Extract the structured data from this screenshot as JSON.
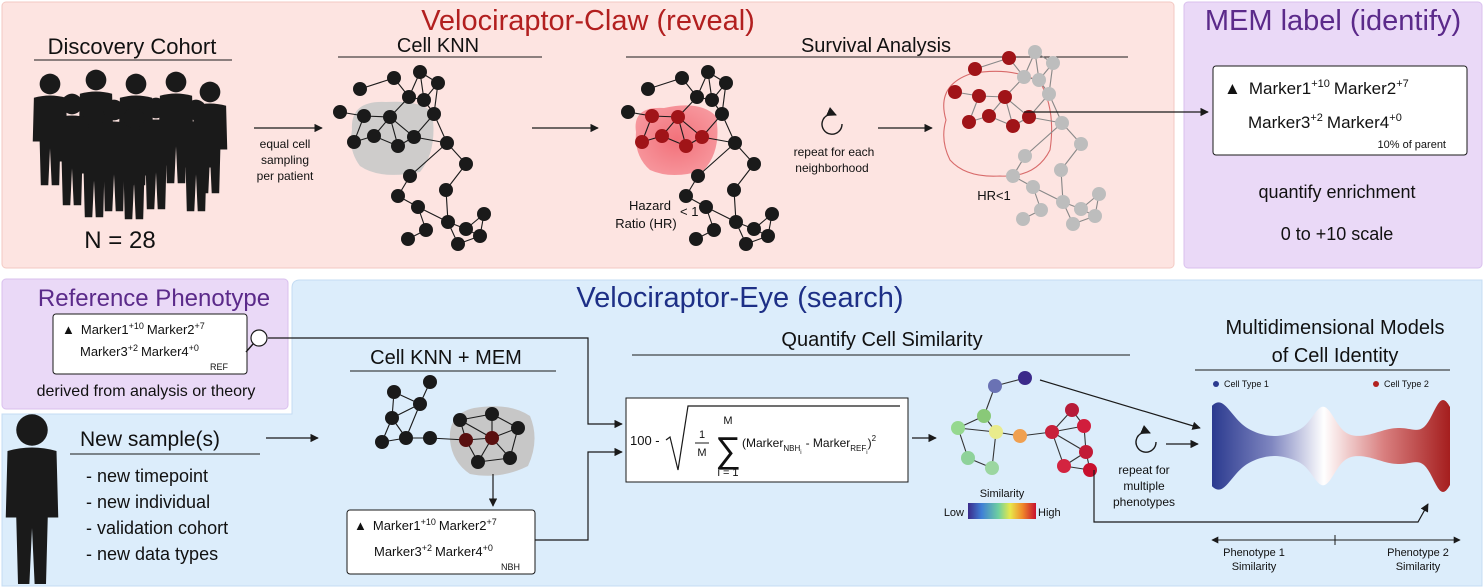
{
  "claw": {
    "title": "Velociraptor-Claw (reveal)",
    "discovery_label": "Discovery Cohort",
    "n_label": "N = 28",
    "sampling_lines": [
      "equal cell",
      "sampling",
      "per patient"
    ],
    "knn_label": "Cell KNN",
    "survival_label": "Survival Analysis",
    "hazard_lines": [
      "Hazard",
      "Ratio (HR)"
    ],
    "hazard_value": "< 1",
    "repeat_lines": [
      "repeat for each",
      "neighborhood"
    ],
    "hr_label": "HR<1"
  },
  "mem": {
    "title": "MEM label (identify)",
    "line1": {
      "glyph": "▲",
      "m1": "Marker1",
      "s1": "+10",
      "m2": "Marker2",
      "s2": "+7"
    },
    "line2": {
      "m3": "Marker3",
      "s3": "+2",
      "m4": "Marker4",
      "s4": "+0"
    },
    "parent": "10% of parent",
    "quantify": "quantify enrichment",
    "scale": "0 to +10 scale"
  },
  "reference": {
    "title": "Reference Phenotype",
    "line1": {
      "glyph": "▲",
      "m1": "Marker1",
      "s1": "+10",
      "m2": "Marker2",
      "s2": "+7"
    },
    "line2": {
      "m3": "Marker3",
      "s3": "+2",
      "m4": "Marker4",
      "s4": "+0"
    },
    "sub": "REF",
    "derived": "derived from analysis or theory"
  },
  "eye": {
    "title": "Velociraptor-Eye (search)",
    "new_samples": "New sample(s)",
    "bullets": [
      "-  new timepoint",
      "-  new individual",
      "-  validation cohort",
      "-  new data types"
    ],
    "knn_mem_label": "Cell KNN + MEM",
    "nbh": {
      "glyph": "▲",
      "m1": "Marker1",
      "s1": "+10",
      "m2": "Marker2",
      "s2": "+7",
      "m3": "Marker3",
      "s3": "+2",
      "m4": "Marker4",
      "s4": "+0",
      "sub": "NBH"
    },
    "quantify_label": "Quantify Cell Similarity",
    "formula": {
      "prefix": "100 -",
      "frac_num": "1",
      "frac_den": "M",
      "sum_top": "M",
      "sum_bottom": "i = 1",
      "open": "(Marker",
      "sub_nbh": "NBH",
      "sub_i": "i",
      "minus": "- Marker",
      "sub_ref": "REF",
      "close": ")",
      "sq": "2"
    },
    "similarity_label": "Similarity",
    "low": "Low",
    "high": "High",
    "repeat_lines": [
      "repeat for",
      "multiple",
      "phenotypes"
    ],
    "models_lines": [
      "Multidimensional Models",
      "of Cell Identity"
    ],
    "cell_type_1": "Cell Type 1",
    "cell_type_2": "Cell Type 2",
    "pheno1_lines": [
      "Phenotype 1",
      "Similarity"
    ],
    "pheno2_lines": [
      "Phenotype 2",
      "Similarity"
    ]
  },
  "colors": {
    "claw_bg": "#fde4e1",
    "mem_bg": "#ead9f7",
    "eye_bg": "#dcedfb",
    "claw_title": "#b21f1f",
    "mem_title": "#5b2a8a",
    "eye_title": "#1d2f86",
    "node_black": "#1a1a1a",
    "node_red": "#a01418",
    "node_gray": "#bdbdbd",
    "cell_type_1": "#2b3a8f",
    "cell_type_2": "#b2221f"
  }
}
